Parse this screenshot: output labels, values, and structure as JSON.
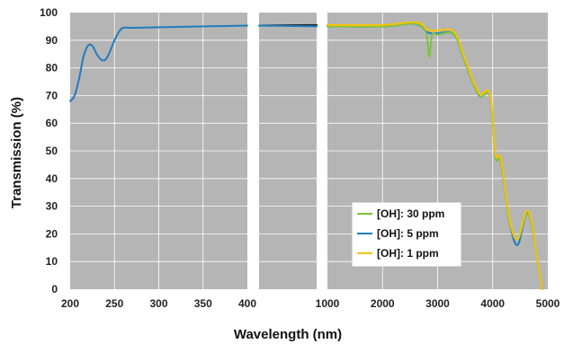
{
  "chart_data": {
    "type": "line",
    "xlabel": "Wavelength (nm)",
    "ylabel": "Transmission (%)",
    "ylim": [
      0,
      100
    ],
    "y_ticks": [
      "0",
      "10",
      "20",
      "30",
      "40",
      "50",
      "60",
      "70",
      "80",
      "90",
      "100"
    ],
    "grid": true,
    "legend_position": "bottom-right inside third panel",
    "panels": [
      {
        "xlim": [
          200,
          400
        ],
        "x_ticks": [
          "200",
          "250",
          "300",
          "350",
          "400"
        ]
      },
      {
        "xlim": [
          400,
          1000
        ],
        "x_ticks": []
      },
      {
        "xlim": [
          1000,
          5000
        ],
        "x_ticks": [
          "1000",
          "2000",
          "3000",
          "4000",
          "5000"
        ]
      }
    ],
    "series": [
      {
        "name": "[OH]: 30 ppm",
        "color": "#7dc242",
        "x": [
          1000,
          2000,
          2500,
          2700,
          2800,
          2850,
          2900,
          3000,
          3300,
          3500,
          3750,
          3950,
          4050,
          4150,
          4300,
          4450,
          4600,
          4700,
          4800,
          4900
        ],
        "y": [
          95,
          95,
          96,
          95,
          92,
          84,
          92,
          92,
          92,
          82,
          70,
          70,
          48,
          46,
          25,
          18,
          27,
          24,
          12,
          0
        ]
      },
      {
        "name": "[OH]: 5 ppm",
        "color": "#1f7cc1",
        "x": [
          200,
          205,
          210,
          215,
          220,
          225,
          230,
          235,
          240,
          245,
          250,
          255,
          260,
          270,
          300,
          350,
          400,
          1000,
          2000,
          2500,
          2700,
          2800,
          2900,
          3000,
          3300,
          3500,
          3750,
          3950,
          4050,
          4150,
          4300,
          4450,
          4600,
          4700,
          4800,
          4900
        ],
        "y": [
          68,
          70,
          76,
          84,
          88,
          88,
          85,
          83,
          83,
          86,
          90,
          93,
          94.5,
          94.5,
          94.7,
          95,
          95.3,
          95,
          95,
          96,
          95,
          93,
          92.5,
          92.5,
          92,
          82,
          70,
          70,
          48,
          46,
          25,
          16,
          27,
          24,
          12,
          0
        ]
      },
      {
        "name": "[OH]: 1 ppm",
        "color": "#f5c400",
        "x": [
          1000,
          2000,
          2500,
          2700,
          2800,
          2900,
          3000,
          3300,
          3500,
          3750,
          3950,
          4050,
          4150,
          4300,
          4450,
          4600,
          4700,
          4800,
          4900
        ],
        "y": [
          95.5,
          95.5,
          96.5,
          96,
          94,
          93.5,
          93.5,
          93,
          83,
          71,
          70.5,
          49,
          47,
          26,
          18,
          28,
          25,
          12,
          0
        ]
      },
      {
        "name": "",
        "color": "#222222",
        "x": [
          400,
          1000
        ],
        "y": [
          95.3,
          95.5
        ]
      }
    ],
    "legend": [
      "[OH]: 30 ppm",
      "[OH]: 5 ppm",
      "[OH]: 1 ppm"
    ]
  }
}
